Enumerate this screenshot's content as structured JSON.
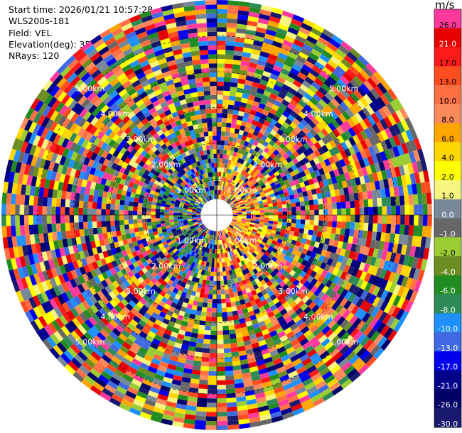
{
  "info": {
    "start_time": "Start time: 2026/01/21 10:57:28",
    "site": "WLS200s-181",
    "field": "Field: VEL",
    "elevation": "Elevation(deg): 35.00",
    "nrays": "NRays: 120"
  },
  "chart_data": {
    "type": "heatmap",
    "subtype": "polar-ppi",
    "nrays": 120,
    "range_rings": [
      {
        "label": "1.00km",
        "range": 1
      },
      {
        "label": "2.00km",
        "range": 2
      },
      {
        "label": "3.00km",
        "range": 3
      },
      {
        "label": "4.00km",
        "range": 4
      },
      {
        "label": "5.00km",
        "range": 5
      }
    ],
    "max_range": 6,
    "colorbar": {
      "unit": "m/s",
      "bins": [
        {
          "label": "26.0",
          "color": "#ff3a9c"
        },
        {
          "label": "21.0",
          "color": "#e60000"
        },
        {
          "label": "17.0",
          "color": "#ff1a1a"
        },
        {
          "label": "13.0",
          "color": "#ff4d20"
        },
        {
          "label": "10.0",
          "color": "#ff7044"
        },
        {
          "label": "8.0",
          "color": "#fc8a5b"
        },
        {
          "label": "6.0",
          "color": "#ffa500"
        },
        {
          "label": "4.0",
          "color": "#ffd700"
        },
        {
          "label": "2.0",
          "color": "#ffff00"
        },
        {
          "label": "1.0",
          "color": "#f5f580"
        },
        {
          "label": "0.0",
          "color": "#778899"
        },
        {
          "label": "-1.0",
          "color": "#676767"
        },
        {
          "label": "-2.0",
          "color": "#9acd32"
        },
        {
          "label": "-4.0",
          "color": "#6b8e23"
        },
        {
          "label": "-6.0",
          "color": "#228b22"
        },
        {
          "label": "-8.0",
          "color": "#2e8b57"
        },
        {
          "label": "-10.0",
          "color": "#1e90ff"
        },
        {
          "label": "-13.0",
          "color": "#4169e1"
        },
        {
          "label": "-17.0",
          "color": "#0000ee"
        },
        {
          "label": "-21.0",
          "color": "#00008b"
        },
        {
          "label": "-26.0",
          "color": "#000066"
        },
        {
          "label": "-30.0",
          "color": "#191970"
        }
      ]
    }
  }
}
